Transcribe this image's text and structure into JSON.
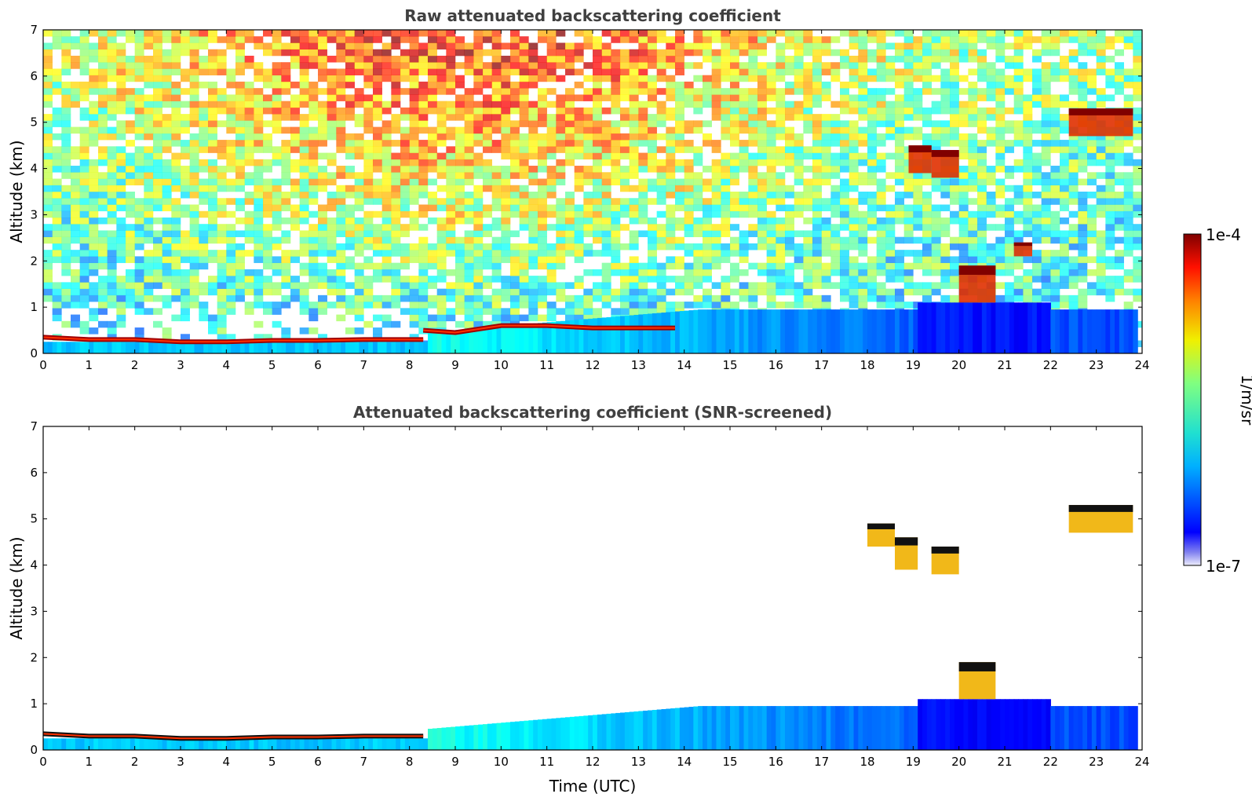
{
  "chart_data": [
    {
      "type": "heatmap",
      "title": "Raw attenuated backscattering coefficient",
      "xlabel": "",
      "ylabel": "Altitude (km)",
      "xlim": [
        0,
        24
      ],
      "ylim": [
        0,
        7
      ],
      "xticks": [
        "0",
        "1",
        "2",
        "3",
        "4",
        "5",
        "6",
        "7",
        "8",
        "9",
        "10",
        "11",
        "12",
        "13",
        "14",
        "15",
        "16",
        "17",
        "18",
        "19",
        "20",
        "21",
        "22",
        "23",
        "24"
      ],
      "yticks": [
        "0",
        "1",
        "2",
        "3",
        "4",
        "5",
        "6",
        "7"
      ],
      "grid": false,
      "colormap": "jet",
      "features": [
        {
          "kind": "boundary-layer-top",
          "x": [
            0,
            1,
            2,
            3,
            4,
            5,
            6,
            7,
            8,
            8.3
          ],
          "y": [
            0.35,
            0.3,
            0.3,
            0.25,
            0.25,
            0.28,
            0.28,
            0.3,
            0.3,
            0.3
          ]
        },
        {
          "kind": "aerosol-layer",
          "x": [
            8.3,
            9,
            10,
            11,
            12,
            13,
            13.8
          ],
          "y": [
            0.5,
            0.45,
            0.6,
            0.6,
            0.55,
            0.55,
            0.55
          ]
        },
        {
          "kind": "cloud",
          "x_range": [
            18.9,
            19.4
          ],
          "y_range": [
            3.9,
            4.5
          ]
        },
        {
          "kind": "cloud",
          "x_range": [
            19.4,
            20.0
          ],
          "y_range": [
            3.8,
            4.4
          ]
        },
        {
          "kind": "cloud",
          "x_range": [
            22.4,
            23.8
          ],
          "y_range": [
            4.7,
            5.3
          ]
        },
        {
          "kind": "cloud",
          "x_range": [
            20.0,
            20.8
          ],
          "y_range": [
            1.1,
            1.9
          ]
        },
        {
          "kind": "cloud",
          "x_range": [
            21.2,
            21.6
          ],
          "y_range": [
            2.1,
            2.4
          ]
        }
      ]
    },
    {
      "type": "heatmap",
      "title": "Attenuated backscattering coefficient (SNR-screened)",
      "xlabel": "Time (UTC)",
      "ylabel": "Altitude (km)",
      "xlim": [
        0,
        24
      ],
      "ylim": [
        0,
        7
      ],
      "xticks": [
        "0",
        "1",
        "2",
        "3",
        "4",
        "5",
        "6",
        "7",
        "8",
        "9",
        "10",
        "11",
        "12",
        "13",
        "14",
        "15",
        "16",
        "17",
        "18",
        "19",
        "20",
        "21",
        "22",
        "23",
        "24"
      ],
      "yticks": [
        "0",
        "1",
        "2",
        "3",
        "4",
        "5",
        "6",
        "7"
      ],
      "grid": false,
      "colormap": "jet",
      "features": [
        {
          "kind": "boundary-layer-top",
          "x": [
            0,
            1,
            2,
            3,
            4,
            5,
            6,
            7,
            8,
            8.3
          ],
          "y": [
            0.35,
            0.3,
            0.3,
            0.25,
            0.25,
            0.28,
            0.28,
            0.3,
            0.3,
            0.3
          ]
        },
        {
          "kind": "cloud",
          "x_range": [
            18.0,
            18.6
          ],
          "y_range": [
            4.4,
            4.9
          ]
        },
        {
          "kind": "cloud",
          "x_range": [
            18.6,
            19.1
          ],
          "y_range": [
            3.9,
            4.6
          ]
        },
        {
          "kind": "cloud",
          "x_range": [
            19.4,
            20.0
          ],
          "y_range": [
            3.8,
            4.4
          ]
        },
        {
          "kind": "cloud",
          "x_range": [
            22.4,
            23.8
          ],
          "y_range": [
            4.7,
            5.3
          ]
        },
        {
          "kind": "cloud",
          "x_range": [
            20.0,
            20.8
          ],
          "y_range": [
            1.1,
            1.9
          ]
        }
      ]
    }
  ],
  "colorbar": {
    "label": "1/m/sr",
    "max_label": "1e-4",
    "min_label": "1e-7",
    "scale": "log",
    "colormap": "jet"
  }
}
